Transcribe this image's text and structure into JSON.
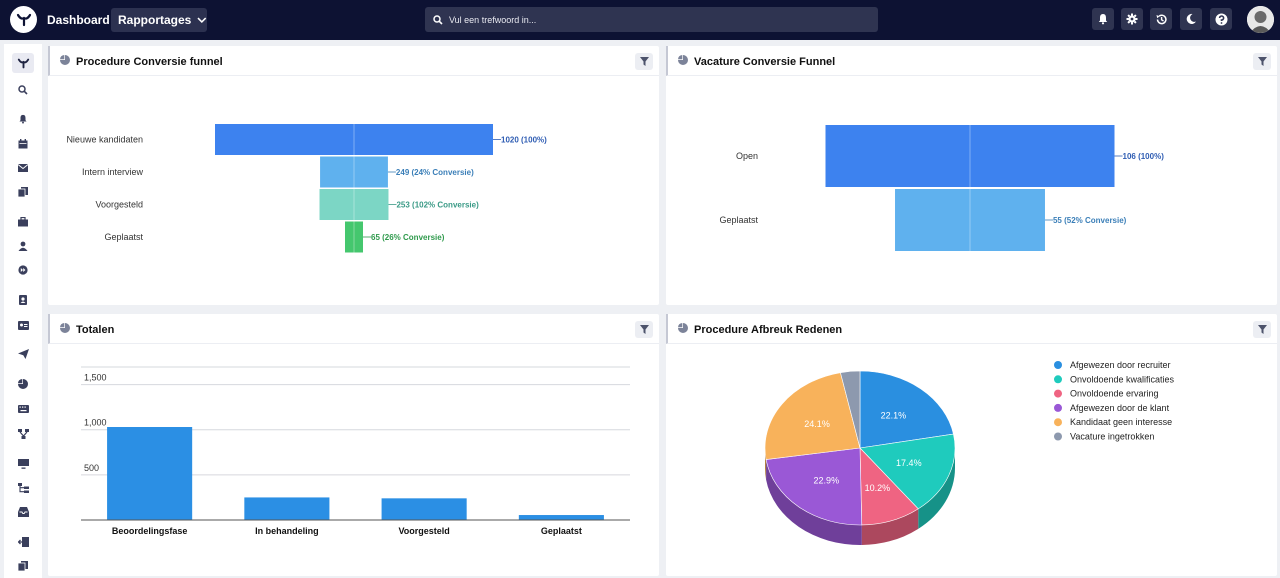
{
  "topbar": {
    "title": "Dashboard",
    "reports_label": "Rapportages",
    "search_placeholder": "Vul een trefwoord in..."
  },
  "panels": {
    "procedure_funnel": {
      "title": "Procedure Conversie funnel"
    },
    "vacancy_funnel": {
      "title": "Vacature Conversie Funnel"
    },
    "totals": {
      "title": "Totalen"
    },
    "breakoff": {
      "title": "Procedure Afbreuk Redenen"
    }
  },
  "colors": {
    "topbar": "#0d1233",
    "funnel_blue": "#3d82ef",
    "funnel_lightblue": "#5fb1ee",
    "funnel_teal": "#7cd6c5",
    "funnel_green": "#45c76e",
    "bar": "#2b8fe4"
  },
  "chart_data": [
    {
      "type": "funnel",
      "id": "procedure_funnel",
      "categories": [
        "Nieuwe kandidaten",
        "Intern interview",
        "Voorgesteld",
        "Geplaatst"
      ],
      "values": [
        1020,
        249,
        253,
        65
      ],
      "labels": [
        "1020 (100%)",
        "249 (24% Conversie)",
        "253 (102% Conversie)",
        "65 (26% Conversie)"
      ],
      "colors": [
        "#3d82ef",
        "#5fb1ee",
        "#7cd6c5",
        "#45c76e"
      ],
      "label_colors": [
        "#2f5db3",
        "#3b7fb8",
        "#3a9a86",
        "#2f9a4c"
      ]
    },
    {
      "type": "funnel",
      "id": "vacancy_funnel",
      "categories": [
        "Open",
        "Geplaatst"
      ],
      "values": [
        106,
        55
      ],
      "labels": [
        "106 (100%)",
        "55 (52% Conversie)"
      ],
      "colors": [
        "#3d82ef",
        "#5fb1ee"
      ],
      "label_colors": [
        "#2f5db3",
        "#3b7fb8"
      ]
    },
    {
      "type": "bar",
      "id": "totals",
      "categories": [
        "Beoordelingsfase",
        "In behandeling",
        "Voorgesteld",
        "Geplaatst"
      ],
      "values": [
        1030,
        250,
        240,
        55
      ],
      "ylim": [
        0,
        1750
      ],
      "yticks": [
        500,
        1000,
        1500
      ],
      "ytick_labels": [
        "500",
        "1,000",
        "1,500"
      ],
      "grid": true
    },
    {
      "type": "pie",
      "id": "breakoff",
      "legend_position": "right",
      "slices": [
        {
          "label": "Afgewezen door recruiter",
          "value": 22.1,
          "display": "22.1%",
          "color": "#2a8fe0"
        },
        {
          "label": "Onvoldoende kwalificaties",
          "value": 17.4,
          "display": "17.4%",
          "color": "#1fcbbd"
        },
        {
          "label": "Onvoldoende ervaring",
          "value": 10.2,
          "display": "10.2%",
          "color": "#ef6482"
        },
        {
          "label": "Afgewezen door de klant",
          "value": 22.9,
          "display": "22.9%",
          "color": "#9a58d6"
        },
        {
          "label": "Kandidaat geen interesse",
          "value": 24.1,
          "display": "24.1%",
          "color": "#f8b25b"
        },
        {
          "label": "Vacature ingetrokken",
          "value": 3.3,
          "display": "",
          "color": "#8d99ae"
        }
      ]
    }
  ]
}
